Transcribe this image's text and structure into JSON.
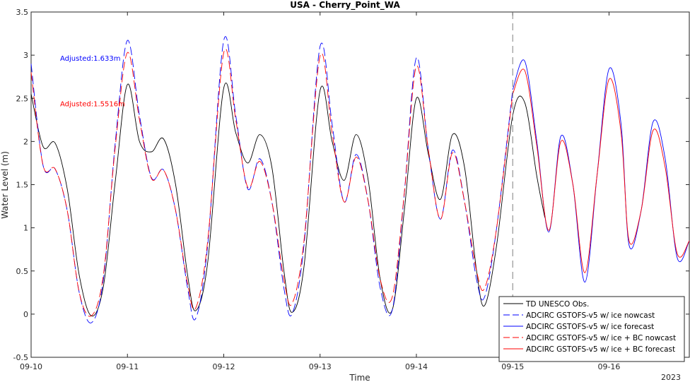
{
  "chart_data": {
    "type": "line",
    "title": "USA - Cherry_Point_WA",
    "xlabel": "Time",
    "ylabel": "Water Level (m)",
    "xlim": [
      "2023-09-10 00:00",
      "2023-09-16 20:00"
    ],
    "ylim": [
      -0.5,
      3.5
    ],
    "x_ticks": [
      "09-10",
      "09-11",
      "09-12",
      "09-13",
      "09-14",
      "09-15",
      "09-16"
    ],
    "x_year_label": "2023",
    "y_ticks": [
      "-0.5",
      "0",
      "0.5",
      "1",
      "1.5",
      "2",
      "2.5",
      "3",
      "3.5"
    ],
    "grid": false,
    "legend_position": "bottom-right",
    "forecast_start_marker": "2023-09-15 00:00",
    "annotations": [
      {
        "text": "Adjusted:1.633m",
        "color": "#0000ff"
      },
      {
        "text": "Adjusted:1.5516m",
        "color": "#ff0000"
      }
    ],
    "series": [
      {
        "name": "TD UNESCO Obs.",
        "color": "#000000",
        "dash": "solid",
        "points": [
          [
            "2023-09-10 00:00",
            2.55
          ],
          [
            "2023-09-10 03:00",
            1.94
          ],
          [
            "2023-09-10 06:00",
            1.98
          ],
          [
            "2023-09-10 09:00",
            1.45
          ],
          [
            "2023-09-10 12:00",
            0.45
          ],
          [
            "2023-09-10 15:00",
            -0.02
          ],
          [
            "2023-09-10 18:00",
            0.32
          ],
          [
            "2023-09-10 21:00",
            1.55
          ],
          [
            "2023-09-11 00:00",
            2.66
          ],
          [
            "2023-09-11 03:00",
            2.0
          ],
          [
            "2023-09-11 06:00",
            1.88
          ],
          [
            "2023-09-11 09:00",
            2.03
          ],
          [
            "2023-09-11 12:00",
            1.5
          ],
          [
            "2023-09-11 15:00",
            0.45
          ],
          [
            "2023-09-11 17:00",
            0.04
          ],
          [
            "2023-09-11 20:00",
            0.6
          ],
          [
            "2023-09-12 00:00",
            2.62
          ],
          [
            "2023-09-12 03:00",
            2.1
          ],
          [
            "2023-09-12 06:00",
            1.75
          ],
          [
            "2023-09-12 09:00",
            2.08
          ],
          [
            "2023-09-12 12:00",
            1.7
          ],
          [
            "2023-09-12 15:00",
            0.5
          ],
          [
            "2023-09-12 17:00",
            0.02
          ],
          [
            "2023-09-12 20:00",
            0.55
          ],
          [
            "2023-09-13 00:00",
            2.59
          ],
          [
            "2023-09-13 03:00",
            2.0
          ],
          [
            "2023-09-13 06:00",
            1.55
          ],
          [
            "2023-09-13 09:00",
            2.08
          ],
          [
            "2023-09-13 12:00",
            1.55
          ],
          [
            "2023-09-13 15:00",
            0.4
          ],
          [
            "2023-09-13 18:00",
            0.05
          ],
          [
            "2023-09-13 21:00",
            1.2
          ],
          [
            "2023-09-14 00:00",
            2.5
          ],
          [
            "2023-09-14 03:00",
            1.85
          ],
          [
            "2023-09-14 06:00",
            1.33
          ],
          [
            "2023-09-14 09:00",
            2.08
          ],
          [
            "2023-09-14 12:00",
            1.7
          ],
          [
            "2023-09-14 15:00",
            0.5
          ],
          [
            "2023-09-14 17:00",
            0.1
          ],
          [
            "2023-09-14 20:00",
            0.8
          ],
          [
            "2023-09-15 00:00",
            2.3
          ],
          [
            "2023-09-15 03:00",
            2.45
          ],
          [
            "2023-09-15 06:00",
            1.6
          ],
          [
            "2023-09-15 08:00",
            1.12
          ]
        ]
      },
      {
        "name": "ADCIRC GSTOFS-v5 w/ ice nowcast",
        "color": "#0000ff",
        "dash": "dashed",
        "points": [
          [
            "2023-09-10 00:00",
            2.9
          ],
          [
            "2023-09-10 03:00",
            1.72
          ],
          [
            "2023-09-10 06:00",
            1.68
          ],
          [
            "2023-09-10 09:00",
            1.2
          ],
          [
            "2023-09-10 12:00",
            0.25
          ],
          [
            "2023-09-10 15:00",
            -0.1
          ],
          [
            "2023-09-10 18:00",
            0.4
          ],
          [
            "2023-09-10 21:00",
            2.0
          ],
          [
            "2023-09-11 00:00",
            3.17
          ],
          [
            "2023-09-11 03:00",
            2.3
          ],
          [
            "2023-09-11 06:00",
            1.58
          ],
          [
            "2023-09-11 09:00",
            1.67
          ],
          [
            "2023-09-11 12:00",
            1.2
          ],
          [
            "2023-09-11 15:00",
            0.3
          ],
          [
            "2023-09-11 17:00",
            -0.05
          ],
          [
            "2023-09-11 20:00",
            0.8
          ],
          [
            "2023-09-12 00:00",
            3.17
          ],
          [
            "2023-09-12 03:00",
            2.3
          ],
          [
            "2023-09-12 06:00",
            1.45
          ],
          [
            "2023-09-12 09:00",
            1.8
          ],
          [
            "2023-09-12 12:00",
            1.3
          ],
          [
            "2023-09-12 15:00",
            0.3
          ],
          [
            "2023-09-12 17:00",
            0.0
          ],
          [
            "2023-09-12 20:00",
            0.8
          ],
          [
            "2023-09-13 00:00",
            3.1
          ],
          [
            "2023-09-13 03:00",
            2.2
          ],
          [
            "2023-09-13 06:00",
            1.3
          ],
          [
            "2023-09-13 09:00",
            1.85
          ],
          [
            "2023-09-13 12:00",
            1.3
          ],
          [
            "2023-09-13 15:00",
            0.3
          ],
          [
            "2023-09-13 18:00",
            0.05
          ],
          [
            "2023-09-13 21:00",
            1.4
          ],
          [
            "2023-09-14 00:00",
            2.97
          ],
          [
            "2023-09-14 03:00",
            1.9
          ],
          [
            "2023-09-14 06:00",
            1.1
          ],
          [
            "2023-09-14 09:00",
            1.9
          ],
          [
            "2023-09-14 12:00",
            1.3
          ],
          [
            "2023-09-14 15:00",
            0.4
          ],
          [
            "2023-09-14 17:00",
            0.2
          ],
          [
            "2023-09-14 20:00",
            1.0
          ],
          [
            "2023-09-15 00:00",
            2.6
          ]
        ]
      },
      {
        "name": "ADCIRC GSTOFS-v5 w/ ice forecast",
        "color": "#0000ff",
        "dash": "solid",
        "points": [
          [
            "2023-09-15 00:00",
            2.6
          ],
          [
            "2023-09-15 03:00",
            2.93
          ],
          [
            "2023-09-15 06:00",
            2.0
          ],
          [
            "2023-09-15 09:00",
            0.95
          ],
          [
            "2023-09-15 12:00",
            2.06
          ],
          [
            "2023-09-15 15:00",
            1.5
          ],
          [
            "2023-09-15 18:00",
            0.37
          ],
          [
            "2023-09-15 21:00",
            1.6
          ],
          [
            "2023-09-16 00:00",
            2.84
          ],
          [
            "2023-09-16 03:00",
            2.2
          ],
          [
            "2023-09-16 05:00",
            0.8
          ],
          [
            "2023-09-16 08:00",
            1.2
          ],
          [
            "2023-09-16 11:00",
            2.23
          ],
          [
            "2023-09-16 14:00",
            1.8
          ],
          [
            "2023-09-16 17:00",
            0.65
          ],
          [
            "2023-09-16 20:00",
            0.85
          ]
        ]
      },
      {
        "name": "ADCIRC GSTOFS-v5 w/ ice + BC nowcast",
        "color": "#ff0000",
        "dash": "dashed",
        "points": [
          [
            "2023-09-10 00:00",
            2.8
          ],
          [
            "2023-09-10 03:00",
            1.72
          ],
          [
            "2023-09-10 06:00",
            1.68
          ],
          [
            "2023-09-10 09:00",
            1.2
          ],
          [
            "2023-09-10 12:00",
            0.25
          ],
          [
            "2023-09-10 15:00",
            -0.02
          ],
          [
            "2023-09-10 18:00",
            0.45
          ],
          [
            "2023-09-10 21:00",
            1.95
          ],
          [
            "2023-09-11 00:00",
            3.03
          ],
          [
            "2023-09-11 03:00",
            2.25
          ],
          [
            "2023-09-11 06:00",
            1.57
          ],
          [
            "2023-09-11 09:00",
            1.67
          ],
          [
            "2023-09-11 12:00",
            1.2
          ],
          [
            "2023-09-11 15:00",
            0.35
          ],
          [
            "2023-09-11 17:00",
            0.07
          ],
          [
            "2023-09-11 20:00",
            0.85
          ],
          [
            "2023-09-12 00:00",
            3.03
          ],
          [
            "2023-09-12 03:00",
            2.25
          ],
          [
            "2023-09-12 06:00",
            1.47
          ],
          [
            "2023-09-12 09:00",
            1.77
          ],
          [
            "2023-09-12 12:00",
            1.3
          ],
          [
            "2023-09-12 15:00",
            0.4
          ],
          [
            "2023-09-12 17:00",
            0.12
          ],
          [
            "2023-09-12 20:00",
            0.85
          ],
          [
            "2023-09-13 00:00",
            2.99
          ],
          [
            "2023-09-13 03:00",
            2.1
          ],
          [
            "2023-09-13 06:00",
            1.3
          ],
          [
            "2023-09-13 09:00",
            1.82
          ],
          [
            "2023-09-13 12:00",
            1.3
          ],
          [
            "2023-09-13 15:00",
            0.4
          ],
          [
            "2023-09-13 18:00",
            0.2
          ],
          [
            "2023-09-13 21:00",
            1.4
          ],
          [
            "2023-09-14 00:00",
            2.87
          ],
          [
            "2023-09-14 03:00",
            1.9
          ],
          [
            "2023-09-14 06:00",
            1.1
          ],
          [
            "2023-09-14 09:00",
            1.87
          ],
          [
            "2023-09-14 12:00",
            1.3
          ],
          [
            "2023-09-14 15:00",
            0.5
          ],
          [
            "2023-09-14 17:00",
            0.3
          ],
          [
            "2023-09-14 20:00",
            1.0
          ],
          [
            "2023-09-15 00:00",
            2.55
          ]
        ]
      },
      {
        "name": "ADCIRC GSTOFS-v5 w/ ice + BC forecast",
        "color": "#ff0000",
        "dash": "solid",
        "points": [
          [
            "2023-09-15 00:00",
            2.55
          ],
          [
            "2023-09-15 03:00",
            2.82
          ],
          [
            "2023-09-15 06:00",
            1.95
          ],
          [
            "2023-09-15 09:00",
            0.97
          ],
          [
            "2023-09-15 12:00",
            2.0
          ],
          [
            "2023-09-15 15:00",
            1.5
          ],
          [
            "2023-09-15 18:00",
            0.48
          ],
          [
            "2023-09-15 21:00",
            1.6
          ],
          [
            "2023-09-16 00:00",
            2.72
          ],
          [
            "2023-09-16 03:00",
            2.1
          ],
          [
            "2023-09-16 05:00",
            0.85
          ],
          [
            "2023-09-16 08:00",
            1.2
          ],
          [
            "2023-09-16 11:00",
            2.13
          ],
          [
            "2023-09-16 14:00",
            1.7
          ],
          [
            "2023-09-16 17:00",
            0.7
          ],
          [
            "2023-09-16 20:00",
            0.85
          ]
        ]
      }
    ]
  }
}
